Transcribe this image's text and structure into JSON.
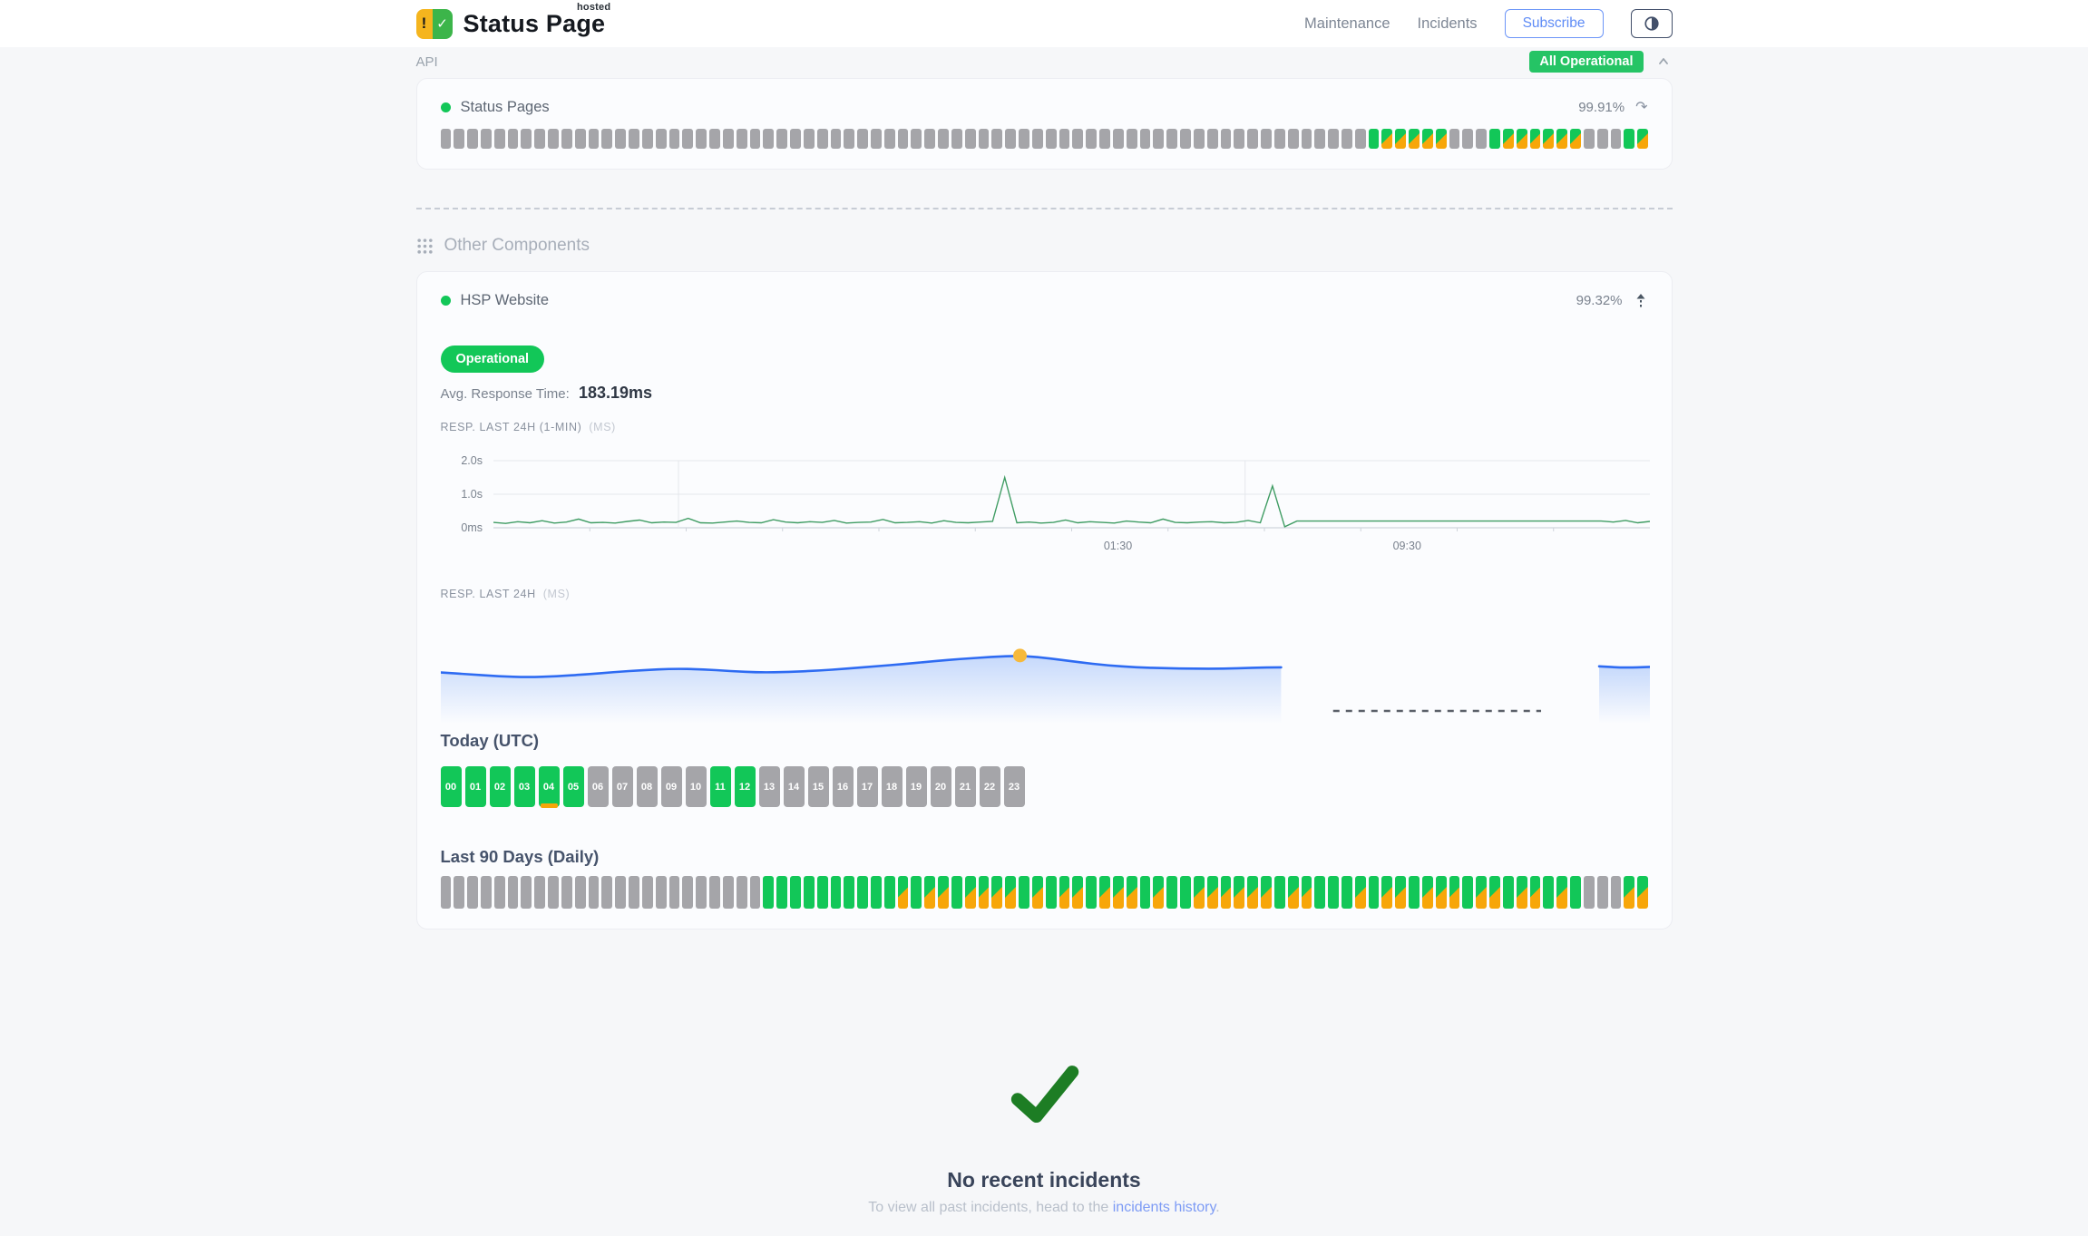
{
  "header": {
    "brand": {
      "name": "Status Page",
      "superscript": "hosted",
      "logo_exclamation": "!",
      "logo_check": "✓"
    },
    "nav": [
      {
        "label": "Maintenance"
      },
      {
        "label": "Incidents"
      }
    ],
    "subscribe_label": "Subscribe",
    "status_badge": "All Operational"
  },
  "api_section": {
    "title": "API",
    "component": {
      "name": "Status Pages",
      "uptime_percent": "99.91%",
      "uptime_bars": [
        "gray",
        "gray",
        "gray",
        "gray",
        "gray",
        "gray",
        "gray",
        "gray",
        "gray",
        "gray",
        "gray",
        "gray",
        "gray",
        "gray",
        "gray",
        "gray",
        "gray",
        "gray",
        "gray",
        "gray",
        "gray",
        "gray",
        "gray",
        "gray",
        "gray",
        "gray",
        "gray",
        "gray",
        "gray",
        "gray",
        "gray",
        "gray",
        "gray",
        "gray",
        "gray",
        "gray",
        "gray",
        "gray",
        "gray",
        "gray",
        "gray",
        "gray",
        "gray",
        "gray",
        "gray",
        "gray",
        "gray",
        "gray",
        "gray",
        "gray",
        "gray",
        "gray",
        "gray",
        "gray",
        "gray",
        "gray",
        "gray",
        "gray",
        "gray",
        "gray",
        "gray",
        "gray",
        "gray",
        "gray",
        "gray",
        "gray",
        "gray",
        "gray",
        "gray",
        "green",
        "split",
        "split",
        "split",
        "split",
        "split",
        "gray",
        "gray",
        "gray",
        "green",
        "split",
        "split",
        "split",
        "split",
        "split",
        "split",
        "gray",
        "gray",
        "gray",
        "green",
        "split"
      ]
    }
  },
  "other_components": {
    "title": "Other Components",
    "component": {
      "name": "HSP Website",
      "uptime_percent": "99.32%",
      "status_badge": "Operational",
      "avg_response_label": "Avg. Response Time:",
      "avg_response_value": "183.19ms",
      "chart1_label": "RESP. LAST 24H (1-MIN)",
      "chart1_unit": "(MS)",
      "chart2_label": "RESP. LAST 24H",
      "chart2_unit": "(MS)",
      "today_title": "Today (UTC)",
      "today_hours": [
        {
          "label": "00",
          "state": "green"
        },
        {
          "label": "01",
          "state": "green"
        },
        {
          "label": "02",
          "state": "green"
        },
        {
          "label": "03",
          "state": "green"
        },
        {
          "label": "04",
          "state": "green_degraded"
        },
        {
          "label": "05",
          "state": "green"
        },
        {
          "label": "06",
          "state": "gray"
        },
        {
          "label": "07",
          "state": "gray"
        },
        {
          "label": "08",
          "state": "gray"
        },
        {
          "label": "09",
          "state": "gray"
        },
        {
          "label": "10",
          "state": "gray"
        },
        {
          "label": "11",
          "state": "green"
        },
        {
          "label": "12",
          "state": "green"
        },
        {
          "label": "13",
          "state": "gray"
        },
        {
          "label": "14",
          "state": "gray"
        },
        {
          "label": "15",
          "state": "gray"
        },
        {
          "label": "16",
          "state": "gray"
        },
        {
          "label": "17",
          "state": "gray"
        },
        {
          "label": "18",
          "state": "gray"
        },
        {
          "label": "19",
          "state": "gray"
        },
        {
          "label": "20",
          "state": "gray"
        },
        {
          "label": "21",
          "state": "gray"
        },
        {
          "label": "22",
          "state": "gray"
        },
        {
          "label": "23",
          "state": "gray"
        }
      ],
      "last90_title": "Last 90 Days (Daily)",
      "last90_bars": [
        "gray",
        "gray",
        "gray",
        "gray",
        "gray",
        "gray",
        "gray",
        "gray",
        "gray",
        "gray",
        "gray",
        "gray",
        "gray",
        "gray",
        "gray",
        "gray",
        "gray",
        "gray",
        "gray",
        "gray",
        "gray",
        "gray",
        "gray",
        "gray",
        "green",
        "green",
        "green",
        "green",
        "green",
        "green",
        "green",
        "green",
        "green",
        "green",
        "split",
        "green",
        "split",
        "split",
        "green",
        "split",
        "split",
        "split",
        "split",
        "green",
        "split",
        "green",
        "split",
        "split",
        "green",
        "split",
        "split",
        "split",
        "green",
        "split",
        "green",
        "green",
        "split",
        "split",
        "split",
        "split",
        "split",
        "split",
        "green",
        "split",
        "split",
        "green",
        "green",
        "green",
        "split",
        "green",
        "split",
        "split",
        "green",
        "split",
        "split",
        "split",
        "green",
        "split",
        "split",
        "green",
        "split",
        "split",
        "green",
        "split",
        "green",
        "gray",
        "gray",
        "gray",
        "split",
        "split"
      ]
    }
  },
  "incidents": {
    "title": "No recent incidents",
    "subtitle_prefix": "To view all past incidents, head to the ",
    "link_text": "incidents history",
    "subtitle_suffix": "."
  },
  "colors": {
    "green": "#12c758",
    "badge_green": "#25c465",
    "orange": "#f7a609",
    "gray_bar": "#a5a5a9",
    "chart1_line_green": "#3f9c63",
    "chart2_line_blue": "#2e6bf2",
    "marker_yellow": "#f6b93b",
    "link_blue": "#7d9bf5",
    "subscribe_blue": "#5f8cf6",
    "check_green": "#1d7d24"
  },
  "chart_data": [
    {
      "name": "resp_last_24h_1min",
      "type": "line",
      "title": "RESP. LAST 24H (1-MIN) (MS)",
      "ylim": [
        0,
        2000
      ],
      "y_max": 2000,
      "y_ticks": [
        {
          "label": "2.0s",
          "value": 2000
        },
        {
          "label": "1.0s",
          "value": 1000
        },
        {
          "label": "0ms",
          "value": 0
        }
      ],
      "x_ticks": [
        {
          "label": "01:30",
          "percent": 54
        },
        {
          "label": "09:30",
          "percent": 79
        }
      ],
      "v_gridlines_percent": [
        16,
        65
      ],
      "values_ms": [
        160,
        130,
        180,
        150,
        210,
        140,
        170,
        260,
        150,
        160,
        140,
        190,
        230,
        150,
        170,
        160,
        280,
        150,
        140,
        170,
        200,
        160,
        150,
        240,
        170,
        150,
        180,
        160,
        220,
        140,
        160,
        170,
        250,
        150,
        160,
        180,
        140,
        210,
        160,
        150,
        170,
        190,
        1500,
        150,
        170,
        140,
        160,
        230,
        150,
        180,
        160,
        140,
        200,
        170,
        150,
        260,
        160,
        150,
        170,
        180,
        150,
        160,
        220,
        150,
        1250,
        30,
        200,
        200,
        200,
        200,
        200,
        200,
        200,
        200,
        200,
        200,
        200,
        200,
        200,
        200,
        200,
        200,
        200,
        200,
        200,
        200,
        200,
        200,
        200,
        200,
        200,
        200,
        170,
        220,
        150,
        190
      ]
    },
    {
      "name": "resp_last_24h_avg",
      "type": "area",
      "title": "RESP. LAST 24H (MS)",
      "segments": [
        {
          "start_percent": 0,
          "end_percent": 69.5,
          "values_ms": [
            170,
            166,
            162,
            160,
            162,
            166,
            171,
            175,
            178,
            177,
            173,
            170,
            171,
            174,
            178,
            183,
            188,
            194,
            199,
            203,
            206,
            200,
            192,
            185,
            181,
            179,
            178,
            178,
            180,
            181
          ]
        },
        {
          "start_percent": 95.8,
          "end_percent": 100,
          "values_ms": [
            183,
            180,
            182
          ]
        }
      ],
      "marker": {
        "percent": 47.9,
        "value_ms": 206,
        "color": "#f6b93b"
      },
      "no_data_dash_percent": [
        73.8,
        91
      ]
    }
  ]
}
